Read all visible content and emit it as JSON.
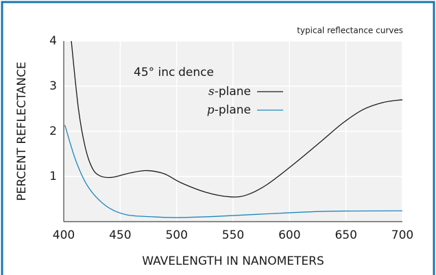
{
  "chart_data": {
    "type": "line",
    "title": "typical reflectance curves",
    "annotation": "45° incidence",
    "xlabel": "WAVELENGTH IN NANOMETERS",
    "ylabel": "PERCENT REFLECTANCE",
    "xlim": [
      400,
      700
    ],
    "ylim": [
      0,
      4
    ],
    "xticks": [
      400,
      450,
      500,
      550,
      600,
      650,
      700
    ],
    "yticks": [
      1,
      2,
      3,
      4
    ],
    "grid": true,
    "series": [
      {
        "name": "s-plane",
        "color": "#1a1a1a",
        "x": [
          406.7,
          413,
          419,
          425,
          431.6,
          442.5,
          459,
          474,
          489,
          504,
          526,
          547,
          562,
          580,
          605,
          629,
          647,
          665,
          683,
          700
        ],
        "values": [
          4.0,
          2.5,
          1.65,
          1.2,
          1.02,
          0.98,
          1.08,
          1.13,
          1.06,
          0.86,
          0.65,
          0.55,
          0.59,
          0.82,
          1.3,
          1.8,
          2.18,
          2.48,
          2.64,
          2.7
        ]
      },
      {
        "name": "p-plane",
        "color": "#1a86bf",
        "x": [
          401,
          410,
          419,
          428.5,
          441,
          456,
          477,
          501,
          538,
          586,
          635,
          700
        ],
        "values": [
          2.14,
          1.4,
          0.88,
          0.55,
          0.29,
          0.15,
          0.11,
          0.09,
          0.12,
          0.18,
          0.23,
          0.24
        ]
      }
    ]
  }
}
